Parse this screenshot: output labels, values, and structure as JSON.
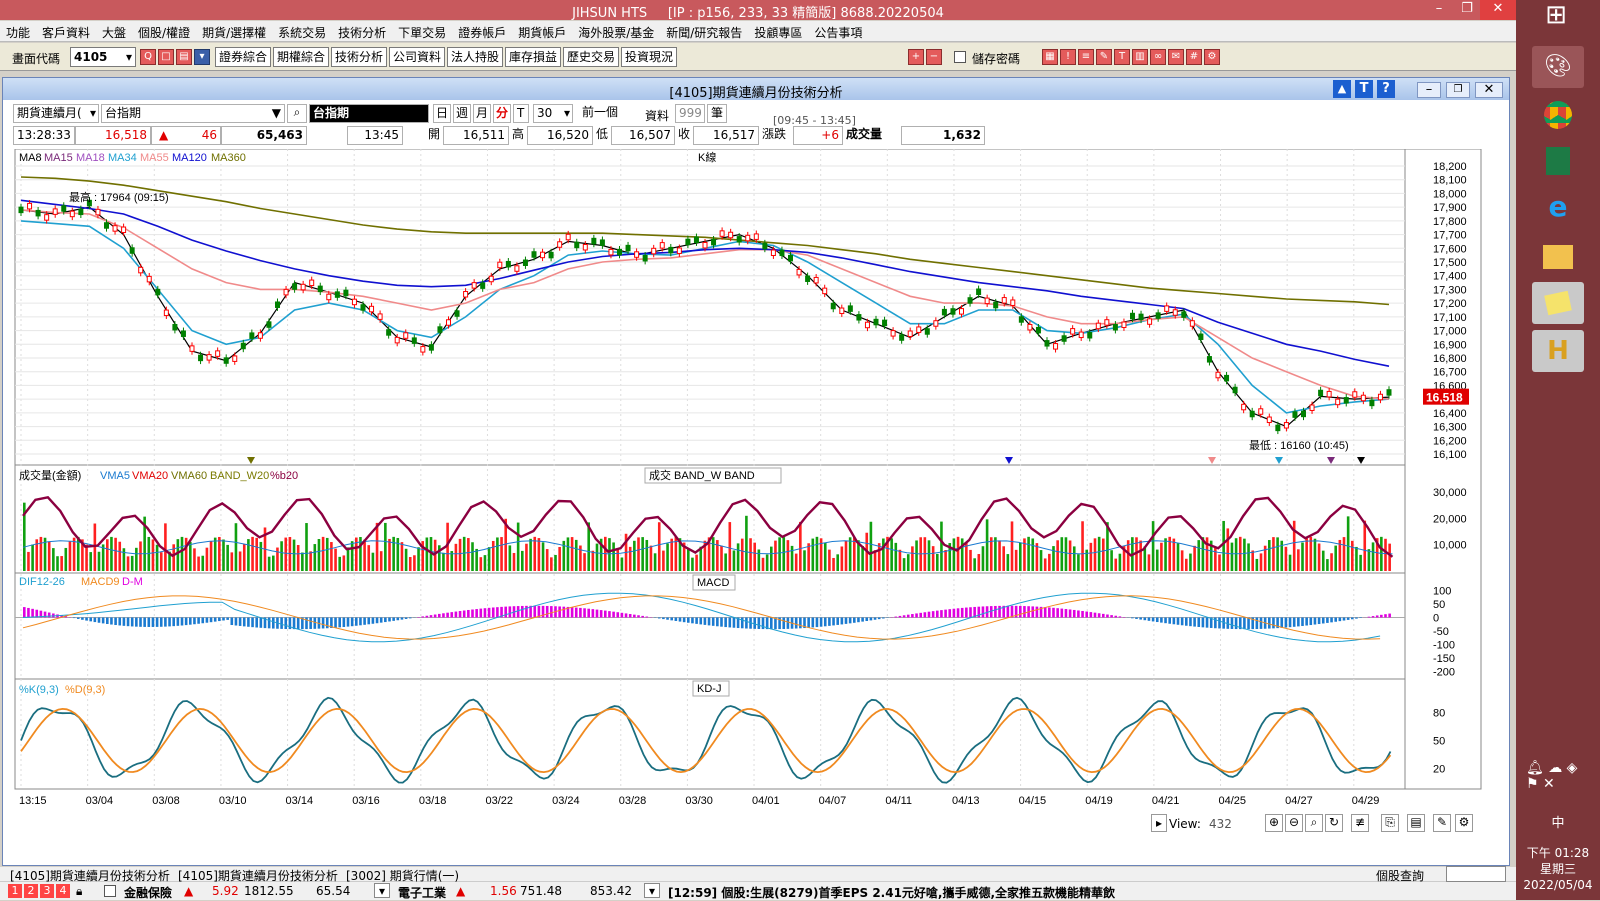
{
  "app": {
    "title": "JIHSUN HTS",
    "ip": "[IP : p156, 233, 33 精簡版] 8688.20220504"
  },
  "menu": [
    "功能",
    "客戶資料",
    "大盤",
    "個股/權證",
    "期貨/選擇權",
    "系統交易",
    "技術分析",
    "下單交易",
    "證券帳戶",
    "期貨帳戶",
    "海外股票/基金",
    "新聞/研究報告",
    "投顧專區",
    "公告事項"
  ],
  "toolbar": {
    "code_label": "畫面代碼",
    "code": "4105",
    "buttons": [
      "證券綜合",
      "期權綜合",
      "技術分析",
      "公司資料",
      "法人持股",
      "庫存損益",
      "歷史交易",
      "投資現況"
    ],
    "save_pwd": "儲存密碼"
  },
  "window": {
    "title": "[4105]期貨連續月份技術分析"
  },
  "info": {
    "product_type": "期貨連續月(",
    "product": "台指期",
    "symbol": "台指期",
    "periods": [
      "日",
      "週",
      "月",
      "分",
      "T"
    ],
    "interval": "30",
    "prev": "前一個",
    "data_label": "資料",
    "data_count": "999",
    "unit": "筆",
    "range": "[09:45 - 13:45]"
  },
  "quote": {
    "time": "13:28:33",
    "price": "16,518",
    "change": "46",
    "volume": "65,463",
    "bar_time": "13:45",
    "open_l": "開",
    "open": "16,511",
    "high_l": "高",
    "high": "16,520",
    "low_l": "低",
    "low": "16,507",
    "close_l": "收",
    "close": "16,517",
    "chg_l": "漲跌",
    "chg": "+6",
    "vol_l": "成交量",
    "vol": "1,632"
  },
  "chart_data": [
    {
      "type": "line",
      "pane": "K線",
      "legend": [
        "MA8",
        "MA15",
        "MA18",
        "MA34",
        "MA55",
        "MA120",
        "MA360"
      ],
      "colors": {
        "MA8": "#000000",
        "MA15": "#7a2a7a",
        "MA18": "#a050c0",
        "MA34": "#20a0d0",
        "MA55": "#f08a8a",
        "MA120": "#1010d0",
        "MA360": "#707000"
      },
      "ylim": [
        16100,
        18200
      ],
      "y_ticks": [
        "18,200",
        "18,100",
        "18,000",
        "17,900",
        "17,800",
        "17,700",
        "17,600",
        "17,500",
        "17,400",
        "17,300",
        "17,200",
        "17,100",
        "17,000",
        "16,900",
        "16,800",
        "16,700",
        "16,600",
        "16,500",
        "16,400",
        "16,300",
        "16,200",
        "16,100"
      ],
      "x_ticks": [
        "13:15",
        "03/04",
        "03/08",
        "03/10",
        "03/14",
        "03/16",
        "03/18",
        "03/22",
        "03/24",
        "03/28",
        "03/30",
        "04/01",
        "04/07",
        "04/11",
        "04/13",
        "04/15",
        "04/19",
        "04/21",
        "04/25",
        "04/27",
        "04/29"
      ],
      "series": [
        {
          "name": "MA8",
          "values": [
            17880,
            17850,
            17900,
            17700,
            17250,
            16850,
            16780,
            16980,
            17350,
            17280,
            17200,
            16950,
            16880,
            17250,
            17450,
            17520,
            17650,
            17620,
            17550,
            17600,
            17650,
            17700,
            17600,
            17400,
            17150,
            17050,
            16950,
            17100,
            17250,
            17180,
            16900,
            16980,
            17050,
            17100,
            17150,
            16700,
            16400,
            16300,
            16520,
            16500,
            16515
          ]
        },
        {
          "name": "MA34",
          "values": [
            17800,
            17780,
            17760,
            17600,
            17300,
            17000,
            16900,
            16950,
            17150,
            17200,
            17150,
            17000,
            16950,
            17100,
            17300,
            17400,
            17550,
            17580,
            17560,
            17550,
            17600,
            17650,
            17620,
            17500,
            17350,
            17200,
            17050,
            17050,
            17150,
            17150,
            17000,
            16980,
            17020,
            17080,
            17120,
            16900,
            16600,
            16400,
            16450,
            16480,
            16500
          ]
        },
        {
          "name": "MA55",
          "values": [
            17880,
            17860,
            17850,
            17750,
            17600,
            17450,
            17350,
            17300,
            17300,
            17280,
            17250,
            17200,
            17150,
            17200,
            17300,
            17350,
            17450,
            17500,
            17520,
            17530,
            17560,
            17590,
            17590,
            17550,
            17450,
            17350,
            17250,
            17200,
            17200,
            17180,
            17100,
            17050,
            17050,
            17080,
            17100,
            16950,
            16800,
            16700,
            16600,
            16520,
            16500
          ]
        },
        {
          "name": "MA120",
          "values": [
            17950,
            17920,
            17890,
            17850,
            17760,
            17660,
            17580,
            17510,
            17450,
            17400,
            17360,
            17330,
            17320,
            17330,
            17380,
            17440,
            17500,
            17540,
            17560,
            17570,
            17590,
            17600,
            17590,
            17570,
            17530,
            17480,
            17430,
            17390,
            17350,
            17320,
            17290,
            17250,
            17220,
            17190,
            17160,
            17060,
            16980,
            16900,
            16850,
            16790,
            16740
          ]
        },
        {
          "name": "MA360",
          "values": [
            18120,
            18110,
            18090,
            18060,
            18020,
            17980,
            17940,
            17890,
            17850,
            17810,
            17770,
            17740,
            17720,
            17710,
            17710,
            17710,
            17710,
            17710,
            17700,
            17690,
            17680,
            17660,
            17640,
            17620,
            17590,
            17560,
            17520,
            17490,
            17460,
            17430,
            17400,
            17370,
            17340,
            17310,
            17290,
            17270,
            17250,
            17230,
            17220,
            17210,
            17190
          ]
        }
      ],
      "annotations": [
        "最高 : 17964 (09:15)",
        "最低 : 16160 (10:45)"
      ],
      "last": "16,518"
    },
    {
      "type": "bar",
      "pane": "成交量(金額)",
      "legend": [
        "VMA5",
        "VMA20",
        "VMA60",
        "BAND_W20",
        "%b20"
      ],
      "title": "成交   BAND_W   BAND",
      "y_ticks": [
        "30,000",
        "20,000",
        "10,000"
      ],
      "ylim": [
        0,
        35000
      ]
    },
    {
      "type": "line",
      "pane": "MACD",
      "legend": [
        "DIF12-26",
        "MACD9",
        "D-M"
      ],
      "title": "MACD",
      "y_ticks": [
        "100",
        "50",
        "0",
        "-50",
        "-100",
        "-150",
        "-200"
      ],
      "ylim": [
        -220,
        120
      ]
    },
    {
      "type": "line",
      "pane": "KD-J",
      "legend": [
        "%K(9,3)",
        "%D(9,3)"
      ],
      "title": "KD-J",
      "y_ticks": [
        "80",
        "50",
        "20"
      ],
      "ylim": [
        0,
        100
      ]
    }
  ],
  "k_label": "K線",
  "view": {
    "label": "View:",
    "value": "432"
  },
  "status": {
    "tabs": [
      "[4105]期貨連續月份技術分析",
      "[4105]期貨連續月份技術分析",
      "[3002] 期貨行情(一)"
    ],
    "right": "個股查詢",
    "ticker1_name": "金融保險",
    "ticker1_a": "5.92",
    "ticker1_b": "1812.55",
    "ticker1_c": "65.54",
    "ticker2_name": "電子工業",
    "ticker2_a": "1.56",
    "ticker2_b": "751.48",
    "ticker2_c": "853.42",
    "news": "[12:59] 個股:生展(8279)首季EPS 2.41元好嗆,攜手威德,全家推五款機能精華飲",
    "pages": [
      "1",
      "2",
      "3",
      "4"
    ]
  },
  "tray": {
    "time": "下午 01:28",
    "day": "星期三",
    "date": "2022/05/04",
    "ime": "中"
  }
}
